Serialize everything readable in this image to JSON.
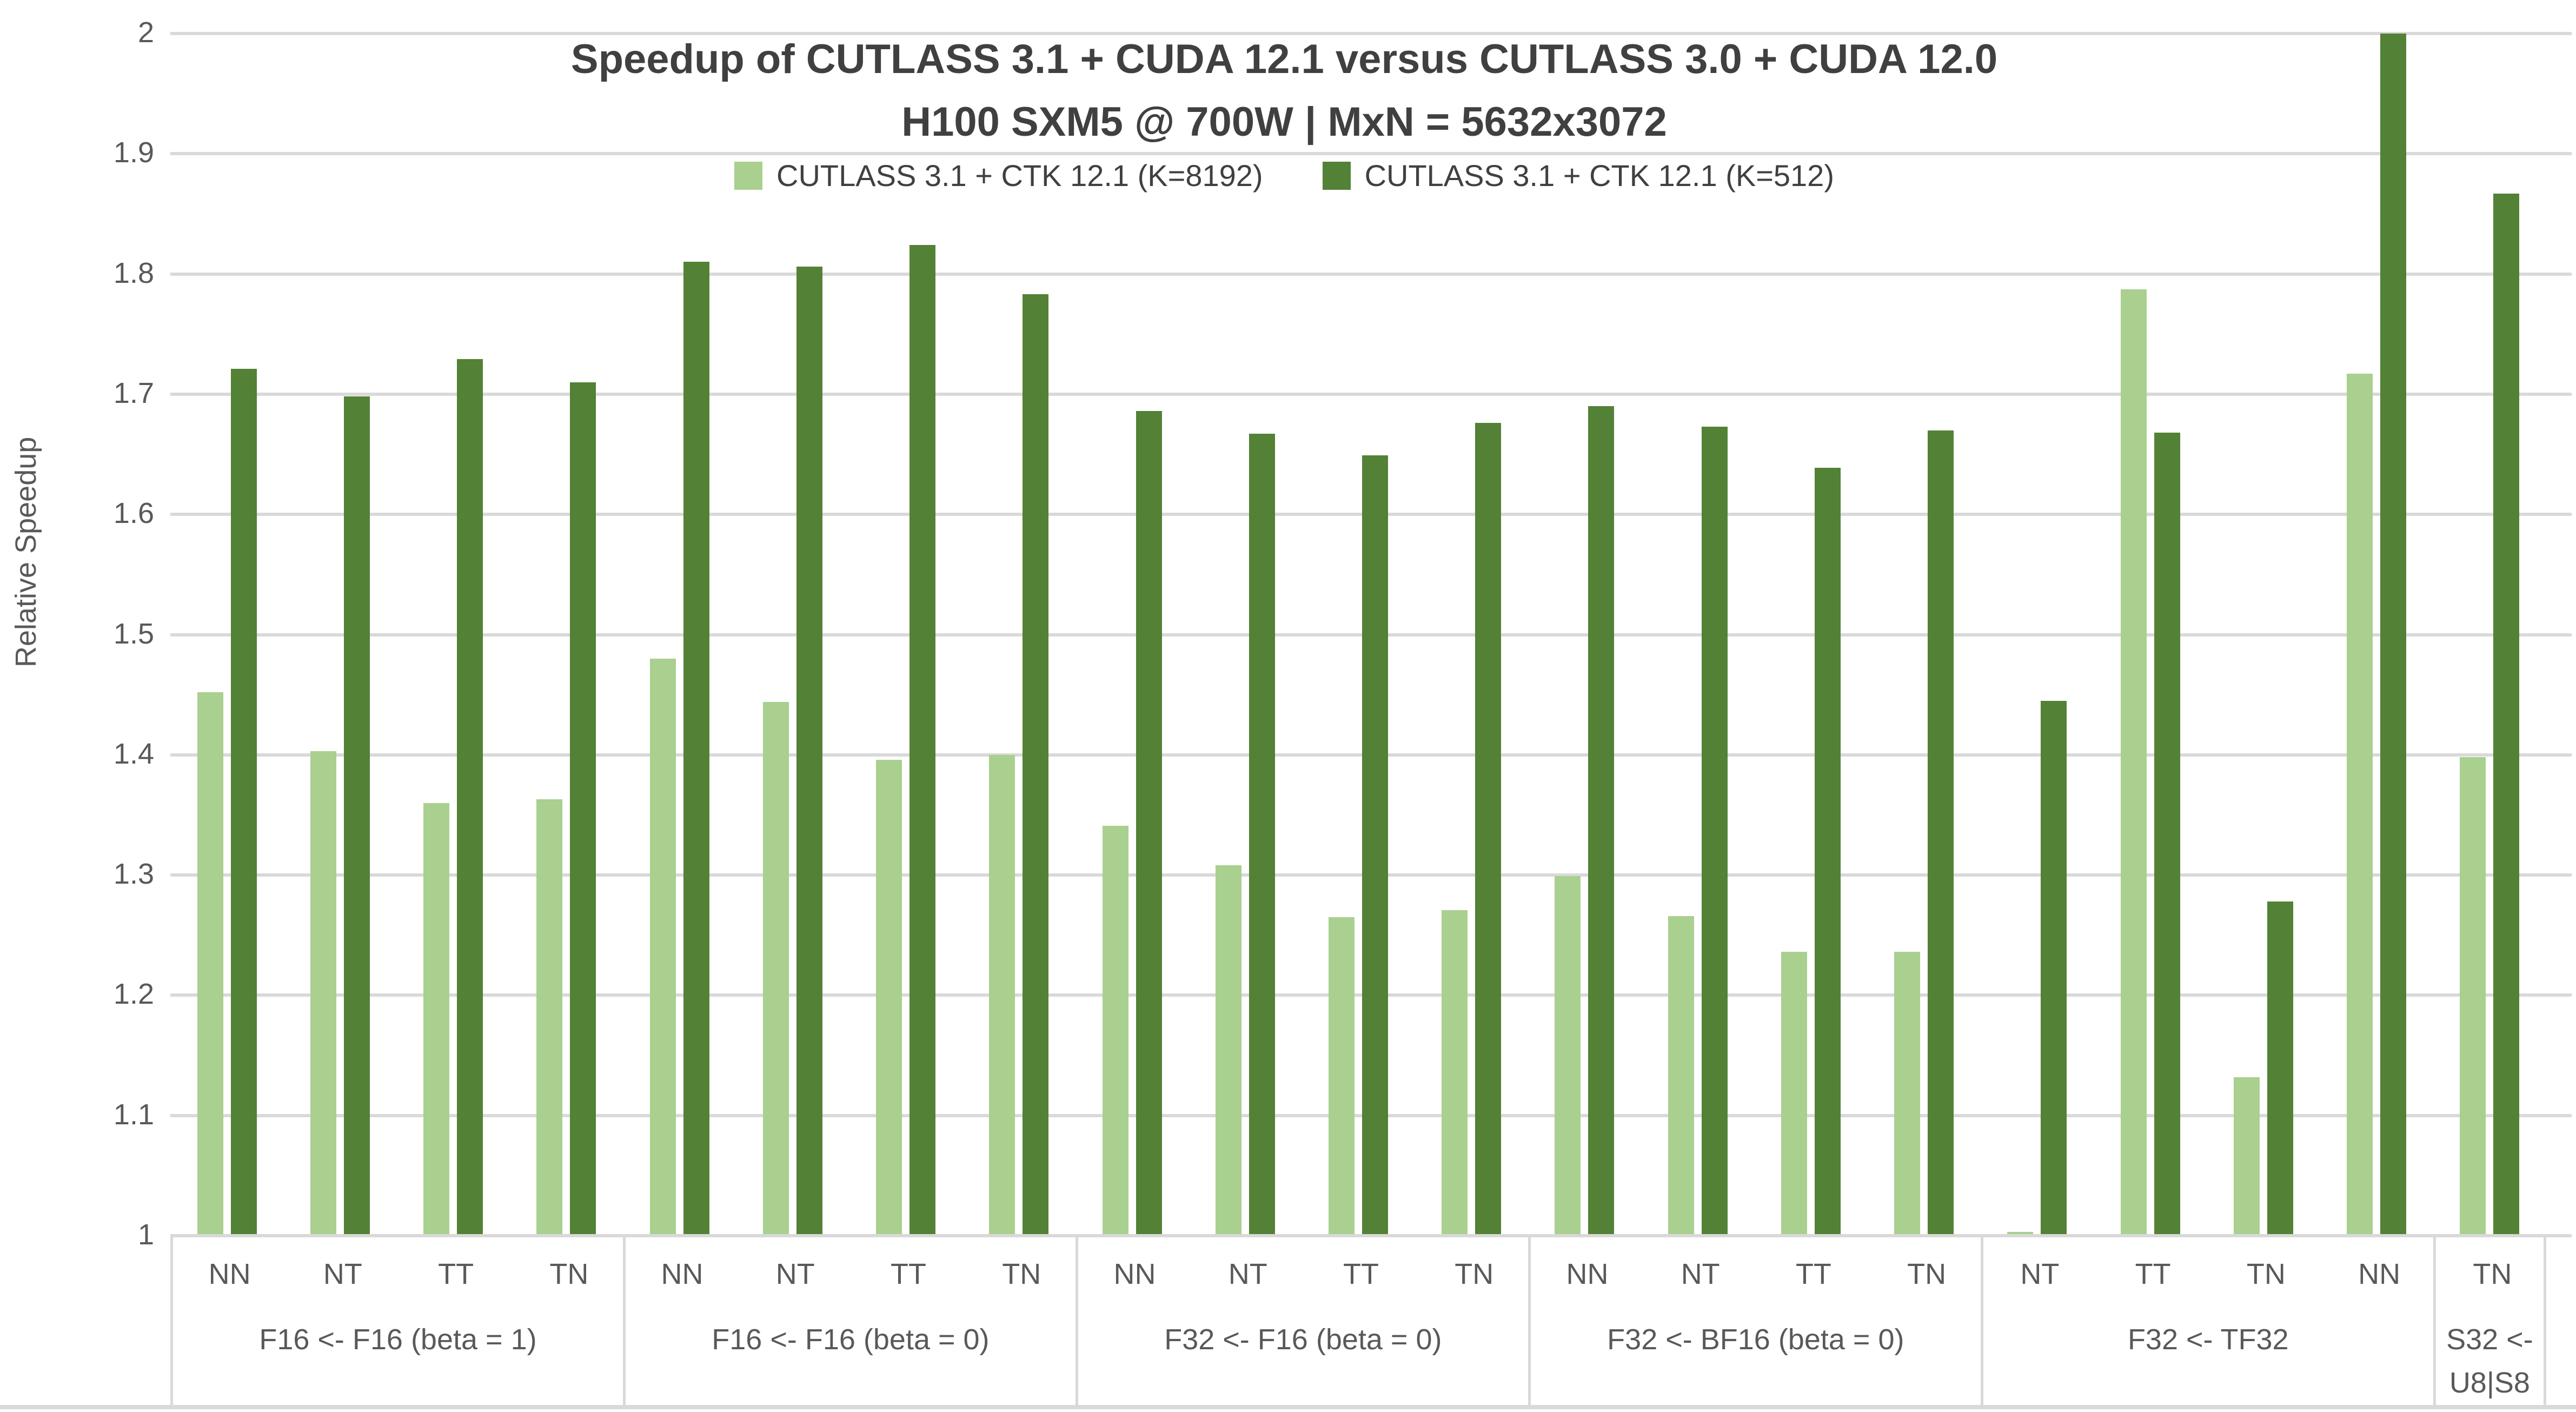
{
  "colors": {
    "series_light": "#a9d08e",
    "series_dark": "#538135",
    "gridline": "#d9d9d9",
    "text": "#595959",
    "title_text": "#404040"
  },
  "chart_data": {
    "type": "bar",
    "title": "Speedup of CUTLASS 3.1 + CUDA 12.1 versus CUTLASS 3.0 + CUDA 12.0",
    "subtitle": "H100 SXM5 @ 700W | MxN = 5632x3072",
    "ylabel": "Relative Speedup",
    "xlabel": "",
    "ylim": [
      1,
      2
    ],
    "ytick_step": 0.1,
    "yticks": [
      "2",
      "1.9",
      "1.8",
      "1.7",
      "1.6",
      "1.5",
      "1.4",
      "1.3",
      "1.2",
      "1.1",
      "1"
    ],
    "grid": true,
    "legend_position": "top",
    "legend": [
      "CUTLASS 3.1 + CTK 12.1 (K=8192)",
      "CUTLASS 3.1 + CTK 12.1 (K=512)"
    ],
    "groups": [
      {
        "label": "F16 <- F16 (beta = 1)",
        "categories": [
          "NN",
          "NT",
          "TT",
          "TN"
        ],
        "series": [
          {
            "name": "CUTLASS 3.1 + CTK 12.1 (K=8192)",
            "values": [
              1.452,
              1.403,
              1.36,
              1.363
            ]
          },
          {
            "name": "CUTLASS 3.1 + CTK 12.1 (K=512)",
            "values": [
              1.721,
              1.698,
              1.729,
              1.71
            ]
          }
        ]
      },
      {
        "label": "F16 <- F16 (beta = 0)",
        "categories": [
          "NN",
          "NT",
          "TT",
          "TN"
        ],
        "series": [
          {
            "name": "CUTLASS 3.1 + CTK 12.1 (K=8192)",
            "values": [
              1.48,
              1.444,
              1.396,
              1.4
            ]
          },
          {
            "name": "CUTLASS 3.1 + CTK 12.1 (K=512)",
            "values": [
              1.81,
              1.806,
              1.824,
              1.783
            ]
          }
        ]
      },
      {
        "label": "F32 <- F16 (beta = 0)",
        "categories": [
          "NN",
          "NT",
          "TT",
          "TN"
        ],
        "series": [
          {
            "name": "CUTLASS 3.1 + CTK 12.1 (K=8192)",
            "values": [
              1.341,
              1.308,
              1.265,
              1.271
            ]
          },
          {
            "name": "CUTLASS 3.1 + CTK 12.1 (K=512)",
            "values": [
              1.686,
              1.667,
              1.649,
              1.676
            ]
          }
        ]
      },
      {
        "label": "F32 <- BF16 (beta = 0)",
        "categories": [
          "NN",
          "NT",
          "TT",
          "TN"
        ],
        "series": [
          {
            "name": "CUTLASS 3.1 + CTK 12.1 (K=8192)",
            "values": [
              1.299,
              1.266,
              1.236,
              1.236
            ]
          },
          {
            "name": "CUTLASS 3.1 + CTK 12.1 (K=512)",
            "values": [
              1.69,
              1.673,
              1.639,
              1.67
            ]
          }
        ]
      },
      {
        "label": "F32 <- TF32",
        "categories": [
          "NT",
          "TT",
          "TN",
          "NN"
        ],
        "series": [
          {
            "name": "CUTLASS 3.1 + CTK 12.1 (K=8192)",
            "values": [
              1.003,
              1.787,
              1.132,
              1.717
            ]
          },
          {
            "name": "CUTLASS 3.1 + CTK 12.1 (K=512)",
            "values": [
              1.445,
              1.668,
              1.278,
              2.0
            ]
          }
        ]
      },
      {
        "label": "S32 <- U8|S8",
        "categories": [
          "TN"
        ],
        "series": [
          {
            "name": "CUTLASS 3.1 + CTK 12.1 (K=8192)",
            "values": [
              1.398
            ]
          },
          {
            "name": "CUTLASS 3.1 + CTK 12.1 (K=512)",
            "values": [
              1.867
            ]
          }
        ]
      }
    ]
  }
}
